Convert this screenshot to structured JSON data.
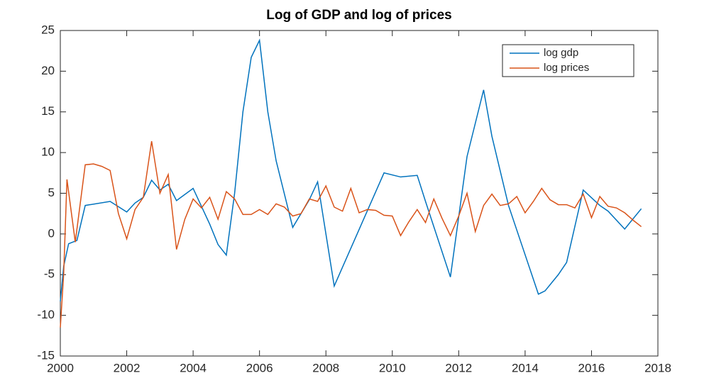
{
  "chart_data": {
    "type": "line",
    "title": "Log of GDP and log of prices",
    "xlim": [
      2000,
      2018
    ],
    "xticks": [
      2000,
      2002,
      2004,
      2006,
      2008,
      2010,
      2012,
      2014,
      2016,
      2018
    ],
    "ylim": [
      -15,
      25
    ],
    "yticks": [
      -15,
      -10,
      -5,
      0,
      5,
      10,
      15,
      20,
      25
    ],
    "legend": "upper right",
    "series": [
      {
        "name": "log gdp",
        "color": "#0072BD",
        "x": [
          2000,
          2000.1,
          2000.25,
          2000.5,
          2000.75,
          2001.5,
          2002,
          2002.25,
          2002.5,
          2002.75,
          2003,
          2003.25,
          2003.5,
          2004,
          2004.5,
          2004.75,
          2005,
          2005.25,
          2005.5,
          2005.75,
          2006,
          2006.25,
          2006.5,
          2007,
          2007.5,
          2007.75,
          2008.25,
          2009.75,
          2010.25,
          2010.75,
          2011,
          2011.75,
          2012.25,
          2012.75,
          2013,
          2013.5,
          2014.4,
          2014.6,
          2015,
          2015.25,
          2015.75,
          2016.25,
          2016.5,
          2017,
          2017.5
        ],
        "values": [
          -8.3,
          -4,
          -1.2,
          -0.8,
          3.5,
          4.0,
          2.7,
          3.8,
          4.5,
          6.6,
          5.4,
          6.1,
          4.1,
          5.6,
          1.2,
          -1.3,
          -2.6,
          5,
          15,
          21.7,
          23.8,
          15,
          9,
          0.8,
          4.2,
          6.4,
          -6.4,
          7.5,
          7.0,
          7.2,
          4,
          -5.3,
          9.5,
          17.7,
          12,
          3.5,
          -7.4,
          -7,
          -5,
          -3.5,
          5.4,
          3.5,
          2.8,
          0.6,
          3.1
        ]
      },
      {
        "name": "log prices",
        "color": "#D95319",
        "x": [
          2000,
          2000.1,
          2000.2,
          2000.45,
          2000.75,
          2001,
          2001.25,
          2001.5,
          2001.75,
          2002,
          2002.25,
          2002.5,
          2002.75,
          2003,
          2003.25,
          2003.5,
          2003.75,
          2004,
          2004.25,
          2004.5,
          2004.75,
          2005,
          2005.25,
          2005.5,
          2005.75,
          2006,
          2006.25,
          2006.5,
          2006.75,
          2007,
          2007.25,
          2007.5,
          2007.75,
          2008,
          2008.25,
          2008.5,
          2008.75,
          2009,
          2009.25,
          2009.5,
          2009.75,
          2010,
          2010.25,
          2010.5,
          2010.75,
          2011,
          2011.25,
          2011.5,
          2011.75,
          2012,
          2012.25,
          2012.5,
          2012.75,
          2013,
          2013.25,
          2013.5,
          2013.75,
          2014,
          2014.25,
          2014.5,
          2014.75,
          2015,
          2015.25,
          2015.5,
          2015.75,
          2016,
          2016.25,
          2016.5,
          2016.75,
          2017,
          2017.25,
          2017.5
        ],
        "values": [
          -11.5,
          -5,
          6.7,
          -1,
          8.5,
          8.6,
          8.3,
          7.8,
          2.5,
          -0.6,
          3,
          4.5,
          11.4,
          5,
          7.3,
          -1.9,
          1.8,
          4.3,
          3.2,
          4.5,
          1.8,
          5.2,
          4.3,
          2.4,
          2.4,
          3,
          2.4,
          3.7,
          3.3,
          2.2,
          2.5,
          4.3,
          4.0,
          5.9,
          3.3,
          2.8,
          5.6,
          2.6,
          3,
          2.9,
          2.3,
          2.2,
          -0.2,
          1.5,
          3,
          1.4,
          4.3,
          1.9,
          -0.2,
          2.2,
          5,
          0.3,
          3.5,
          4.9,
          3.5,
          3.7,
          4.6,
          2.6,
          4,
          5.6,
          4.2,
          3.6,
          3.6,
          3.2,
          4.9,
          2.0,
          4.6,
          3.4,
          3.2,
          2.6,
          1.7,
          0.9
        ]
      }
    ]
  }
}
